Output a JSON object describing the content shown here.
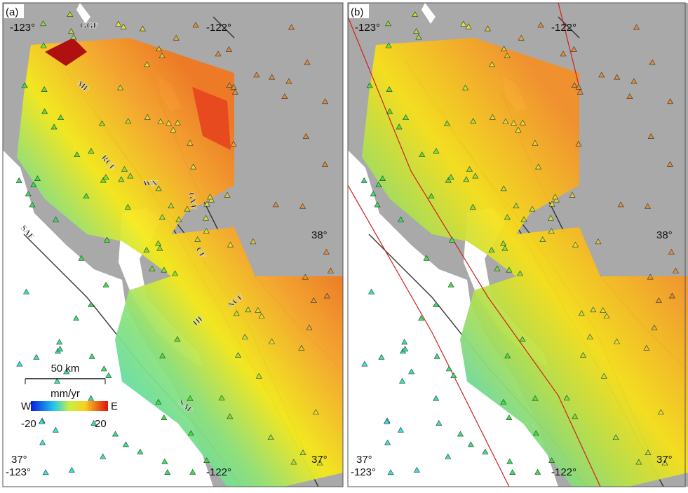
{
  "panels": [
    {
      "label": "(a)",
      "lon_left": "-123°",
      "lon_right": "-122°",
      "lat_top": "38°",
      "lat_bottom": "37°",
      "fault_labels": [
        "GGF",
        "MF",
        "RCF",
        "WN",
        "GVF",
        "SAF",
        "CF",
        "NCF",
        "HF",
        "SAF"
      ]
    },
    {
      "label": "(b)",
      "lon_left": "-123°",
      "lon_right": "-122°",
      "lat_top": "38°",
      "lat_bottom": "37°"
    }
  ],
  "scale_bar": "50 km",
  "colorbar": {
    "title": "mm/yr",
    "left": "W",
    "right": "E",
    "min": -20,
    "max": 20
  }
}
